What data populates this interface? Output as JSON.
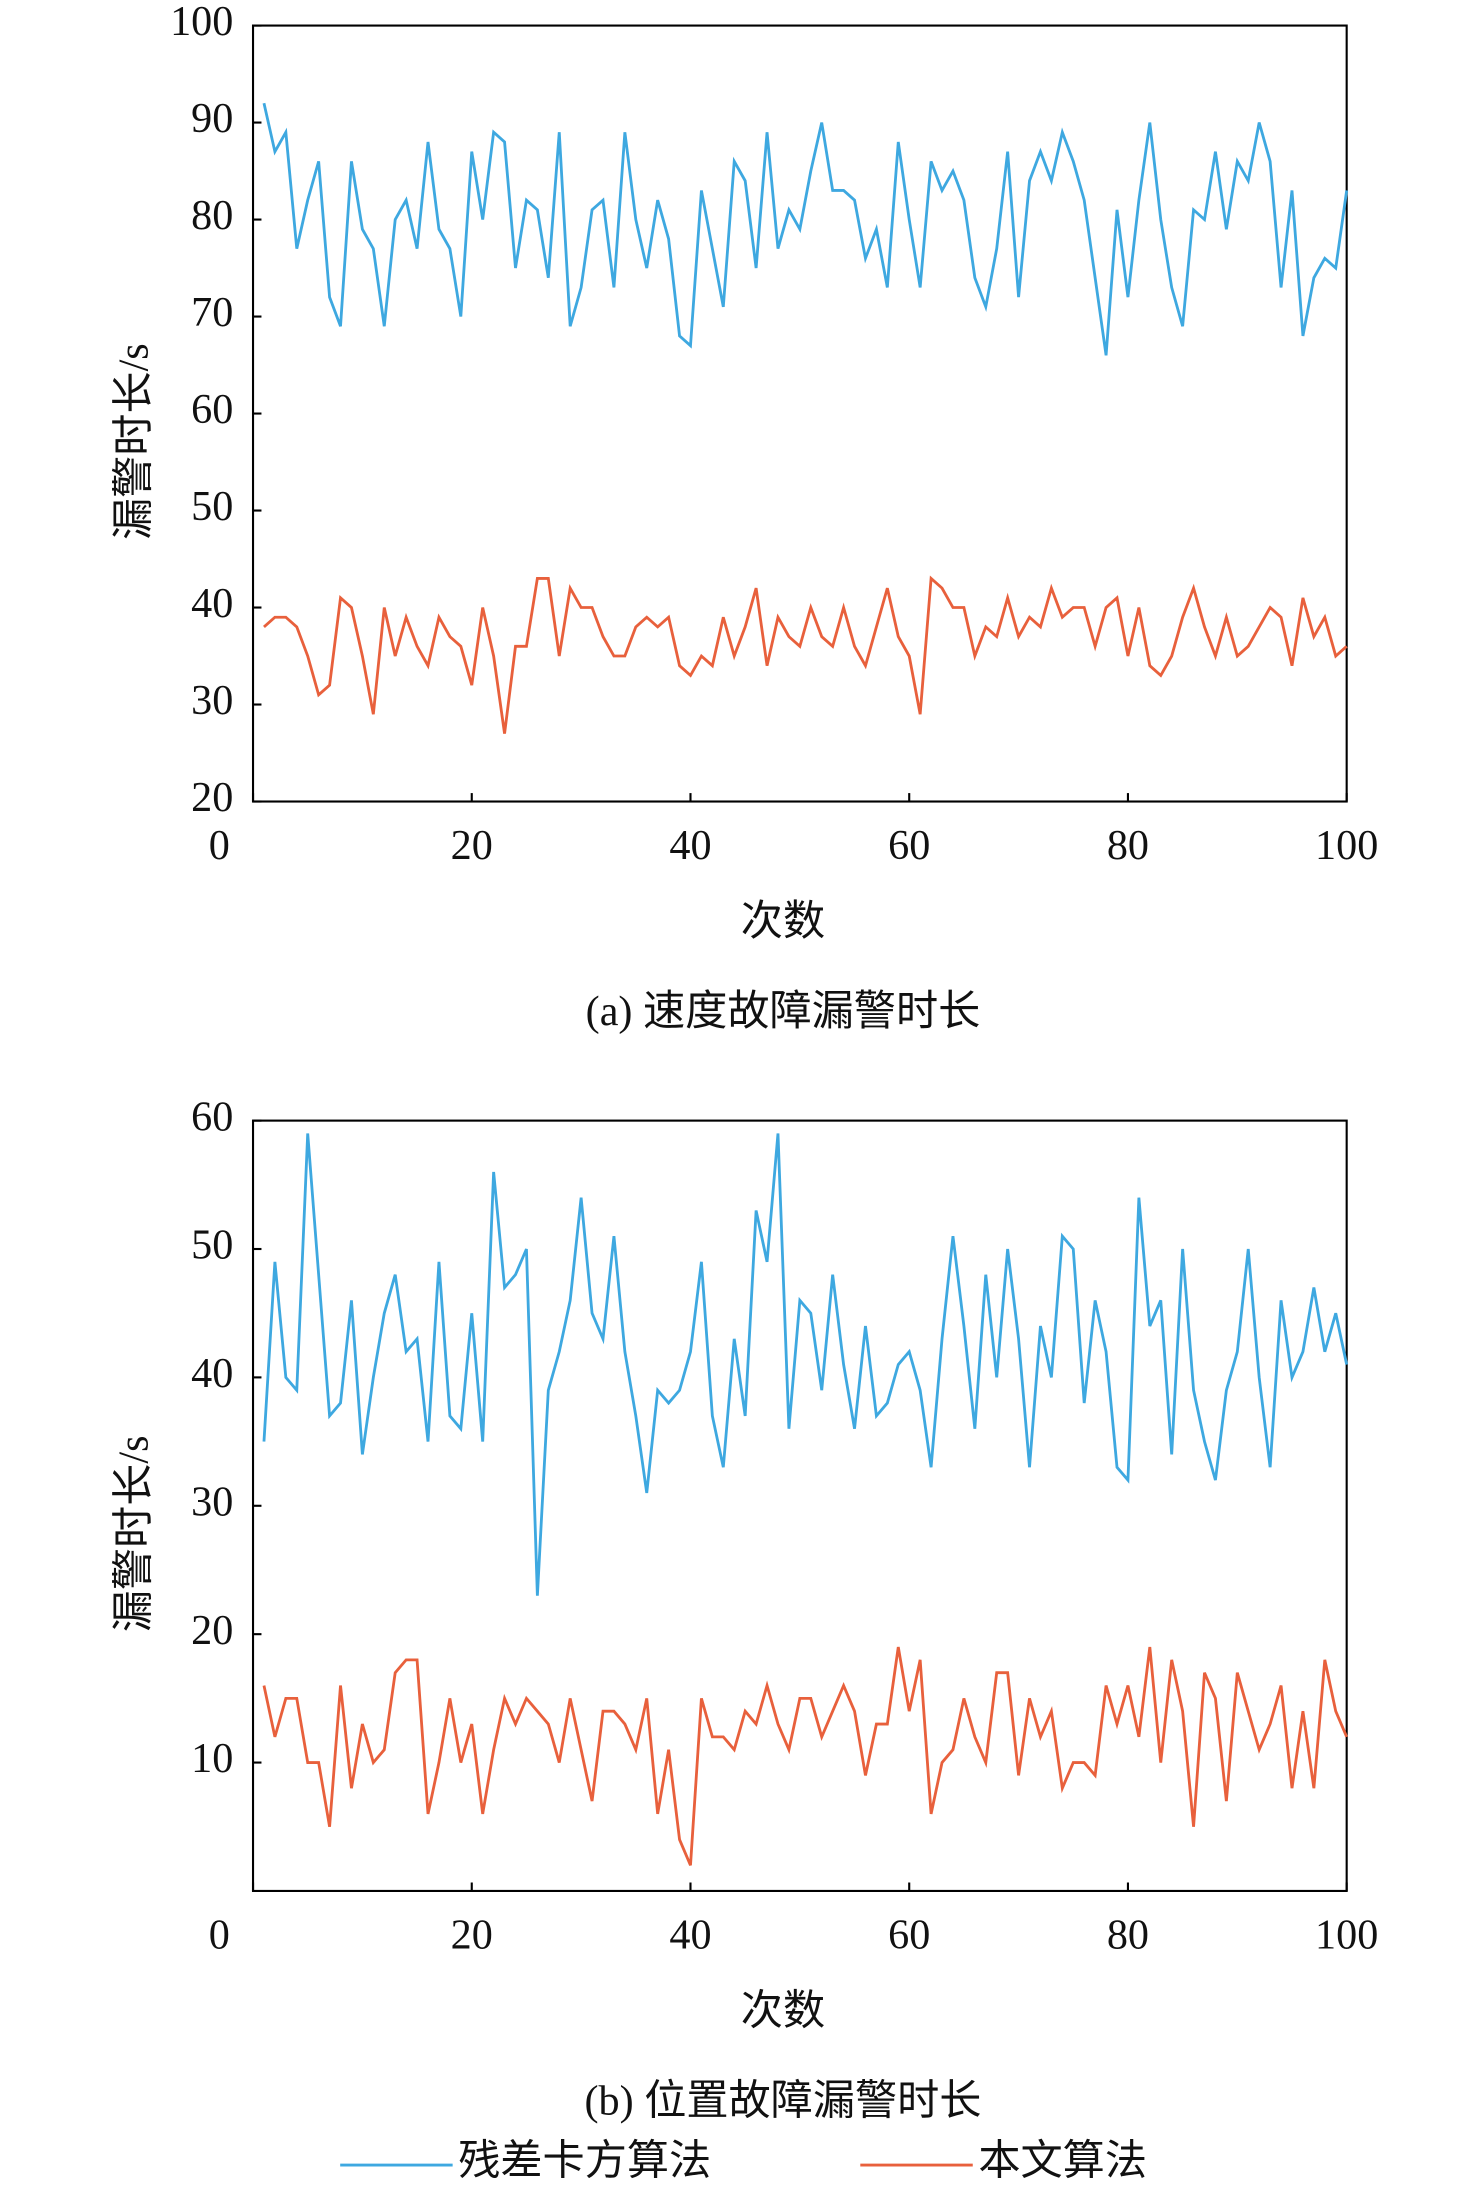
{
  "chart_data": [
    {
      "type": "line",
      "caption": "(a) 速度故障漏警时长",
      "xlabel": "次数",
      "ylabel": "漏警时长/s",
      "xlim": [
        0,
        100
      ],
      "xticks": [
        0,
        20,
        40,
        60,
        80,
        100
      ],
      "ylim": [
        20,
        100
      ],
      "yticks": [
        20,
        30,
        40,
        50,
        60,
        70,
        80,
        90,
        100
      ],
      "x": [
        1,
        2,
        3,
        4,
        5,
        6,
        7,
        8,
        9,
        10,
        11,
        12,
        13,
        14,
        15,
        16,
        17,
        18,
        19,
        20,
        21,
        22,
        23,
        24,
        25,
        26,
        27,
        28,
        29,
        30,
        31,
        32,
        33,
        34,
        35,
        36,
        37,
        38,
        39,
        40,
        41,
        42,
        43,
        44,
        45,
        46,
        47,
        48,
        49,
        50,
        51,
        52,
        53,
        54,
        55,
        56,
        57,
        58,
        59,
        60,
        61,
        62,
        63,
        64,
        65,
        66,
        67,
        68,
        69,
        70,
        71,
        72,
        73,
        74,
        75,
        76,
        77,
        78,
        79,
        80,
        81,
        82,
        83,
        84,
        85,
        86,
        87,
        88,
        89,
        90,
        91,
        92,
        93,
        94,
        95,
        96,
        97,
        98,
        99,
        100
      ],
      "series": [
        {
          "name": "残差卡方算法",
          "color": "#3ea8e0",
          "values": [
            92,
            87,
            89,
            77,
            82,
            86,
            72,
            69,
            86,
            79,
            77,
            69,
            80,
            82,
            77,
            88,
            79,
            77,
            70,
            87,
            80,
            89,
            88,
            75,
            82,
            81,
            74,
            89,
            69,
            73,
            81,
            82,
            73,
            89,
            80,
            75,
            82,
            78,
            68,
            67,
            83,
            77,
            71,
            86,
            84,
            75,
            89,
            77,
            81,
            79,
            85,
            90,
            83,
            83,
            82,
            76,
            79,
            73,
            88,
            80,
            73,
            86,
            83,
            85,
            82,
            74,
            71,
            77,
            87,
            72,
            84,
            87,
            84,
            89,
            86,
            82,
            74,
            66,
            81,
            72,
            82,
            90,
            80,
            73,
            69,
            81,
            80,
            87,
            79,
            86,
            84,
            90,
            86,
            73,
            83,
            68,
            74,
            76,
            75,
            83
          ]
        },
        {
          "name": "本文算法",
          "color": "#e8603c",
          "values": [
            38,
            39,
            39,
            38,
            35,
            31,
            32,
            41,
            40,
            35,
            29,
            40,
            35,
            39,
            36,
            34,
            39,
            37,
            36,
            32,
            40,
            35,
            27,
            36,
            36,
            43,
            43,
            35,
            42,
            40,
            40,
            37,
            35,
            35,
            38,
            39,
            38,
            39,
            34,
            33,
            35,
            34,
            39,
            35,
            38,
            42,
            34,
            39,
            37,
            36,
            40,
            37,
            36,
            40,
            36,
            34,
            38,
            42,
            37,
            35,
            29,
            43,
            42,
            40,
            40,
            35,
            38,
            37,
            41,
            37,
            39,
            38,
            42,
            39,
            40,
            40,
            36,
            40,
            41,
            35,
            40,
            34,
            33,
            35,
            39,
            42,
            38,
            35,
            39,
            35,
            36,
            38,
            40,
            39,
            34,
            41,
            37,
            39,
            35,
            36
          ]
        }
      ]
    },
    {
      "type": "line",
      "caption": "(b) 位置故障漏警时长",
      "xlabel": "次数",
      "ylabel": "漏警时长/s",
      "xlim": [
        0,
        100
      ],
      "xticks": [
        0,
        20,
        40,
        60,
        80,
        100
      ],
      "ylim": [
        0,
        60
      ],
      "yticks": [
        10,
        20,
        30,
        40,
        50,
        60
      ],
      "x": [
        1,
        2,
        3,
        4,
        5,
        6,
        7,
        8,
        9,
        10,
        11,
        12,
        13,
        14,
        15,
        16,
        17,
        18,
        19,
        20,
        21,
        22,
        23,
        24,
        25,
        26,
        27,
        28,
        29,
        30,
        31,
        32,
        33,
        34,
        35,
        36,
        37,
        38,
        39,
        40,
        41,
        42,
        43,
        44,
        45,
        46,
        47,
        48,
        49,
        50,
        51,
        52,
        53,
        54,
        55,
        56,
        57,
        58,
        59,
        60,
        61,
        62,
        63,
        64,
        65,
        66,
        67,
        68,
        69,
        70,
        71,
        72,
        73,
        74,
        75,
        76,
        77,
        78,
        79,
        80,
        81,
        82,
        83,
        84,
        85,
        86,
        87,
        88,
        89,
        90,
        91,
        92,
        93,
        94,
        95,
        96,
        97,
        98,
        99,
        100
      ],
      "series": [
        {
          "name": "残差卡方算法",
          "color": "#3ea8e0",
          "values": [
            35,
            49,
            40,
            39,
            59,
            48,
            37,
            38,
            46,
            34,
            40,
            45,
            48,
            42,
            43,
            35,
            49,
            37,
            36,
            45,
            35,
            56,
            47,
            48,
            50,
            23,
            39,
            42,
            46,
            54,
            45,
            43,
            51,
            42,
            37,
            31,
            39,
            38,
            39,
            42,
            49,
            37,
            33,
            43,
            37,
            53,
            49,
            59,
            36,
            46,
            45,
            39,
            48,
            41,
            36,
            44,
            37,
            38,
            41,
            42,
            39,
            33,
            43,
            51,
            44,
            36,
            48,
            40,
            50,
            43,
            33,
            44,
            40,
            51,
            50,
            38,
            46,
            42,
            33,
            32,
            54,
            44,
            46,
            34,
            50,
            39,
            35,
            32,
            39,
            42,
            50,
            40,
            33,
            46,
            40,
            42,
            47,
            42,
            45,
            41
          ]
        },
        {
          "name": "本文算法",
          "color": "#e8603c",
          "values": [
            16,
            12,
            15,
            15,
            10,
            10,
            5,
            16,
            8,
            13,
            10,
            11,
            17,
            18,
            18,
            6,
            10,
            15,
            10,
            13,
            6,
            11,
            15,
            13,
            15,
            14,
            13,
            10,
            15,
            11,
            7,
            14,
            14,
            13,
            11,
            15,
            6,
            11,
            4,
            2,
            15,
            12,
            12,
            11,
            14,
            13,
            16,
            13,
            11,
            15,
            15,
            12,
            14,
            16,
            14,
            9,
            13,
            13,
            19,
            14,
            18,
            6,
            10,
            11,
            15,
            12,
            10,
            17,
            17,
            9,
            15,
            12,
            14,
            8,
            10,
            10,
            9,
            16,
            13,
            16,
            12,
            19,
            10,
            18,
            14,
            5,
            17,
            15,
            7,
            17,
            14,
            11,
            13,
            16,
            8,
            14,
            8,
            18,
            14,
            12
          ]
        }
      ]
    }
  ]
}
